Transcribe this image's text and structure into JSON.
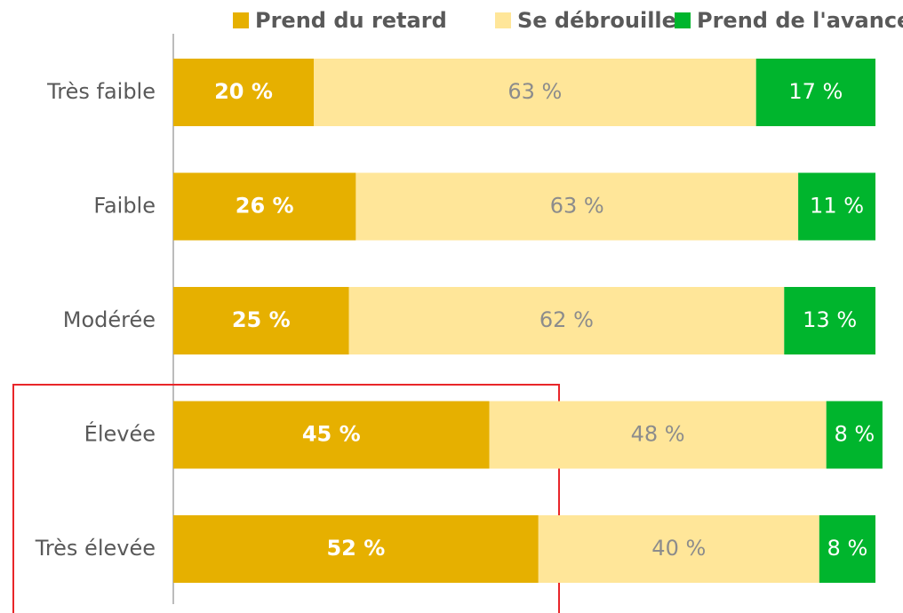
{
  "chart_data": {
    "type": "stacked_barh",
    "categories": [
      "Très faible",
      "Faible",
      "Modérée",
      "Élevée",
      "Très élevée"
    ],
    "series": [
      {
        "name": "Prend du retard",
        "color": "#e6b000",
        "values": [
          20,
          26,
          25,
          45,
          52
        ],
        "value_labels": [
          "20 %",
          "26 %",
          "25 %",
          "45 %",
          "52 %"
        ]
      },
      {
        "name": "Se débrouille",
        "color": "#ffe699",
        "values": [
          63,
          63,
          62,
          48,
          40
        ],
        "value_labels": [
          "63 %",
          "63 %",
          "62 %",
          "48 %",
          "40 %"
        ]
      },
      {
        "name": "Prend de l'avance",
        "color": "#00b52d",
        "values": [
          17,
          11,
          13,
          8,
          8
        ],
        "value_labels": [
          "17 %",
          "11 %",
          "13 %",
          "8 %",
          "8 %"
        ]
      }
    ],
    "xlim": [
      0,
      100
    ],
    "legend": "top"
  }
}
